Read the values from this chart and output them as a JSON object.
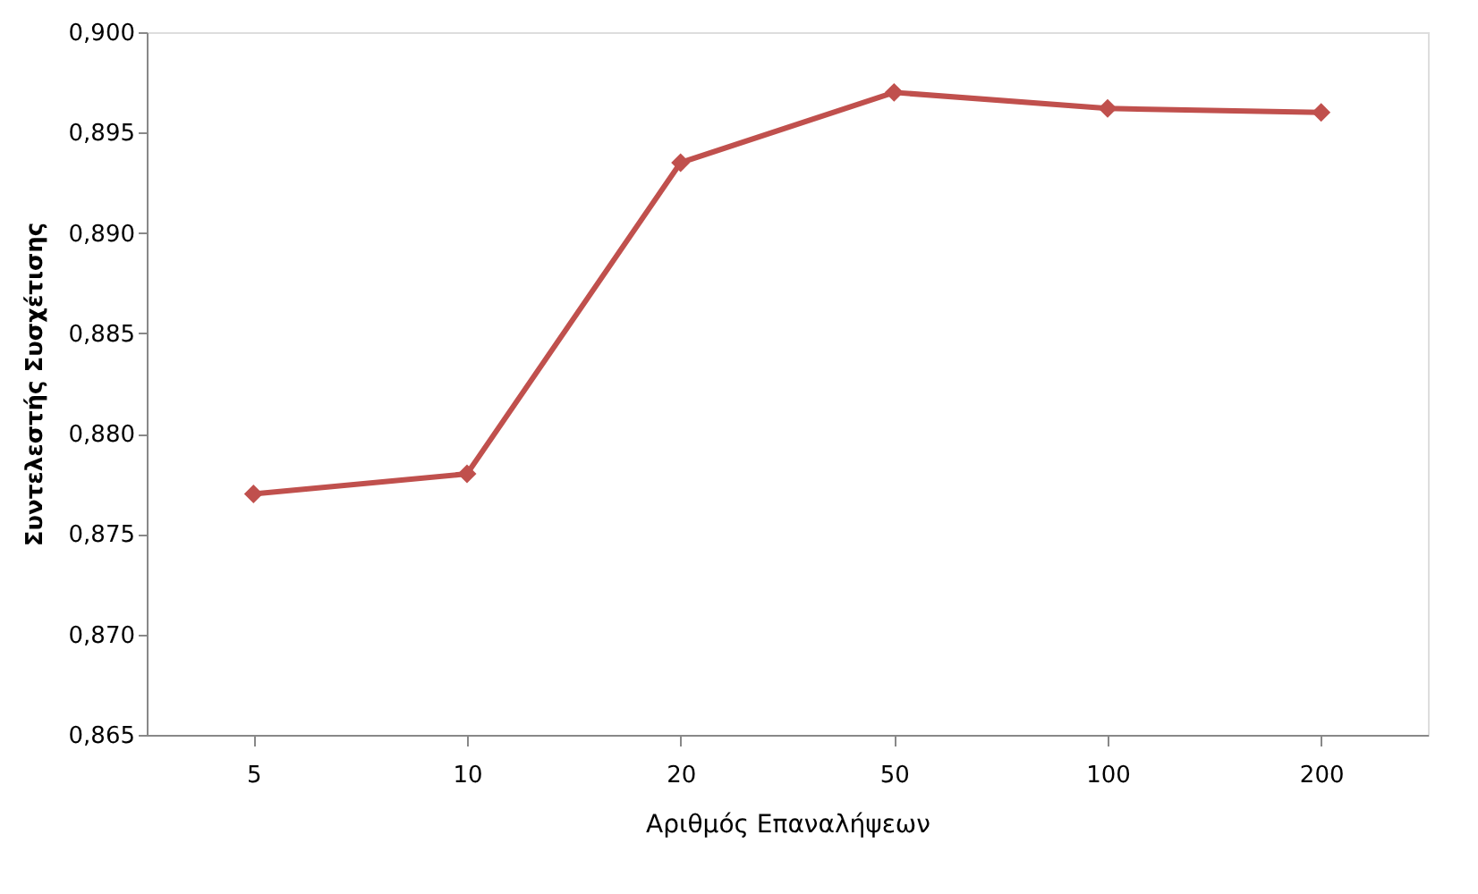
{
  "chart_data": {
    "type": "line",
    "xlabel": "Αριθμός Επαναλήψεων",
    "ylabel": "Συντελεστής Συσχέτισης",
    "categories": [
      "5",
      "10",
      "20",
      "50",
      "100",
      "200"
    ],
    "series": [
      {
        "color": "#c0504d",
        "values": [
          0.877,
          0.878,
          0.8935,
          0.897,
          0.8962,
          0.896
        ]
      }
    ],
    "ylim": [
      0.865,
      0.9
    ],
    "yticks": [
      {
        "value": 0.865,
        "label": "0,865"
      },
      {
        "value": 0.87,
        "label": "0,870"
      },
      {
        "value": 0.875,
        "label": "0,875"
      },
      {
        "value": 0.88,
        "label": "0,880"
      },
      {
        "value": 0.885,
        "label": "0,885"
      },
      {
        "value": 0.89,
        "label": "0,890"
      },
      {
        "value": 0.895,
        "label": "0,895"
      },
      {
        "value": 0.9,
        "label": "0,900"
      }
    ],
    "grid": false,
    "marker": "diamond",
    "line_style": "solid"
  }
}
